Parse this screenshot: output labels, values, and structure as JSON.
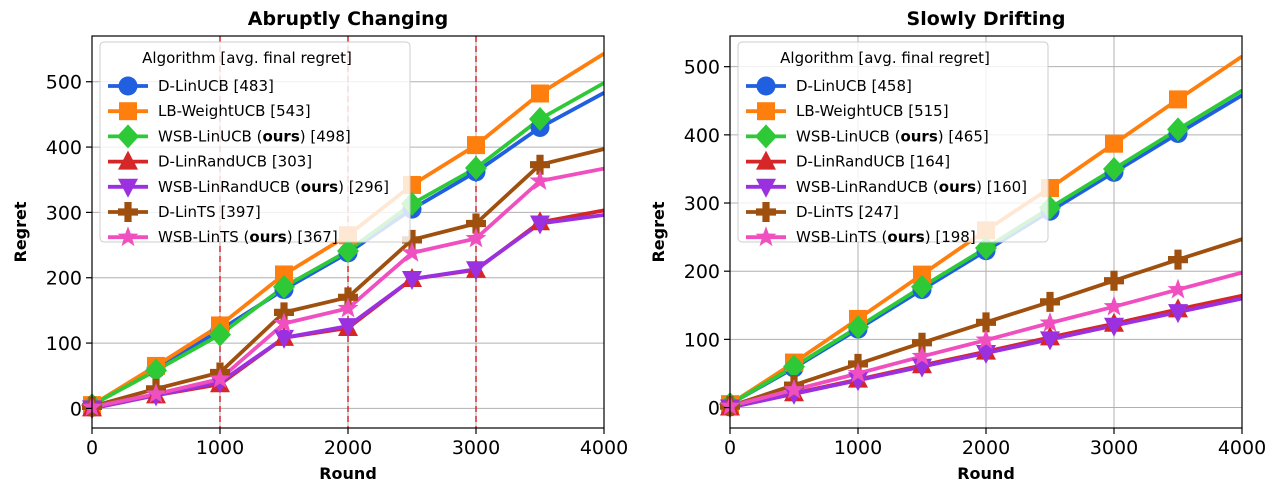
{
  "chart_data": [
    {
      "type": "line",
      "title": "Abruptly Changing",
      "xlabel": "Round",
      "ylabel": "Regret",
      "xlim": [
        0,
        4000
      ],
      "ylim": [
        -30,
        570
      ],
      "xticks": [
        0,
        1000,
        2000,
        3000,
        4000
      ],
      "yticks": [
        0,
        100,
        200,
        300,
        400,
        500
      ],
      "grid": true,
      "change_points": [
        1000,
        2000,
        3000
      ],
      "legend": {
        "title": "Algorithm [avg. final regret]",
        "placement": "top-left"
      },
      "series": [
        {
          "name": "D-LinUCB",
          "legend_pre": "D-LinUCB ",
          "legend_bold": "",
          "legend_post": "[483]",
          "color": "#1f5fe0",
          "marker": "circle",
          "x": [
            0,
            500,
            1000,
            1500,
            2000,
            2500,
            3000,
            3500,
            4000
          ],
          "y": [
            5,
            60,
            120,
            182,
            238,
            305,
            362,
            430,
            483
          ]
        },
        {
          "name": "LB-WeightUCB",
          "legend_pre": "LB-WeightUCB ",
          "legend_bold": "",
          "legend_post": "[543]",
          "color": "#ff7f0e",
          "marker": "square",
          "x": [
            0,
            500,
            1000,
            1500,
            2000,
            2500,
            3000,
            3500,
            4000
          ],
          "y": [
            5,
            65,
            127,
            205,
            265,
            342,
            403,
            482,
            543
          ]
        },
        {
          "name": "WSB-LinUCB (ours)",
          "legend_pre": "WSB-LinUCB (",
          "legend_bold": "ours",
          "legend_post": ") [498]",
          "color": "#2dc937",
          "marker": "diamond",
          "x": [
            0,
            500,
            1000,
            1500,
            2000,
            2500,
            3000,
            3500,
            4000
          ],
          "y": [
            5,
            58,
            113,
            186,
            241,
            313,
            368,
            443,
            498
          ]
        },
        {
          "name": "D-LinRandUCB",
          "legend_pre": "D-LinRandUCB ",
          "legend_bold": "",
          "legend_post": "[303]",
          "color": "#d62728",
          "marker": "triangle-up",
          "x": [
            0,
            500,
            1000,
            1500,
            2000,
            2500,
            3000,
            3500,
            4000
          ],
          "y": [
            0,
            20,
            37,
            108,
            123,
            198,
            212,
            285,
            303
          ]
        },
        {
          "name": "WSB-LinRandUCB (ours)",
          "legend_pre": "WSB-LinRandUCB (",
          "legend_bold": "ours",
          "legend_post": ") [296]",
          "color": "#9b30e0",
          "marker": "triangle-down",
          "x": [
            0,
            500,
            1000,
            1500,
            2000,
            2500,
            3000,
            3500,
            4000
          ],
          "y": [
            0,
            20,
            40,
            108,
            126,
            198,
            213,
            283,
            296
          ]
        },
        {
          "name": "D-LinTS",
          "legend_pre": "D-LinTS ",
          "legend_bold": "",
          "legend_post": "[397]",
          "color": "#a0500e",
          "marker": "plus",
          "x": [
            0,
            500,
            1000,
            1500,
            2000,
            2500,
            3000,
            3500,
            4000
          ],
          "y": [
            3,
            30,
            55,
            147,
            170,
            258,
            283,
            373,
            397
          ]
        },
        {
          "name": "WSB-LinTS (ours)",
          "legend_pre": "WSB-LinTS (",
          "legend_bold": "ours",
          "legend_post": ") [367]",
          "color": "#f04fc0",
          "marker": "star",
          "x": [
            0,
            500,
            1000,
            1500,
            2000,
            2500,
            3000,
            3500,
            4000
          ],
          "y": [
            2,
            22,
            45,
            130,
            153,
            238,
            260,
            348,
            367
          ]
        }
      ]
    },
    {
      "type": "line",
      "title": "Slowly Drifting",
      "xlabel": "Round",
      "ylabel": "Regret",
      "xlim": [
        0,
        4000
      ],
      "ylim": [
        -30,
        545
      ],
      "xticks": [
        0,
        1000,
        2000,
        3000,
        4000
      ],
      "yticks": [
        0,
        100,
        200,
        300,
        400,
        500
      ],
      "grid": true,
      "change_points": [],
      "legend": {
        "title": "Algorithm [avg. final regret]",
        "placement": "top-left"
      },
      "series": [
        {
          "name": "D-LinUCB",
          "legend_pre": "D-LinUCB ",
          "legend_bold": "",
          "legend_post": "[458]",
          "color": "#1f5fe0",
          "marker": "circle",
          "x": [
            0,
            500,
            1000,
            1500,
            2000,
            2500,
            3000,
            3500,
            4000
          ],
          "y": [
            5,
            58,
            115,
            173,
            230,
            288,
            345,
            402,
            458
          ]
        },
        {
          "name": "LB-WeightUCB",
          "legend_pre": "LB-WeightUCB ",
          "legend_bold": "",
          "legend_post": "[515]",
          "color": "#ff7f0e",
          "marker": "square",
          "x": [
            0,
            500,
            1000,
            1500,
            2000,
            2500,
            3000,
            3500,
            4000
          ],
          "y": [
            5,
            66,
            130,
            195,
            260,
            322,
            387,
            452,
            515
          ]
        },
        {
          "name": "WSB-LinUCB (ours)",
          "legend_pre": "WSB-LinUCB (",
          "legend_bold": "ours",
          "legend_post": ") [465]",
          "color": "#2dc937",
          "marker": "diamond",
          "x": [
            0,
            500,
            1000,
            1500,
            2000,
            2500,
            3000,
            3500,
            4000
          ],
          "y": [
            5,
            60,
            118,
            177,
            234,
            293,
            350,
            408,
            465
          ]
        },
        {
          "name": "D-LinRandUCB",
          "legend_pre": "D-LinRandUCB ",
          "legend_bold": "",
          "legend_post": "[164]",
          "color": "#d62728",
          "marker": "triangle-up",
          "x": [
            0,
            500,
            1000,
            1500,
            2000,
            2500,
            3000,
            3500,
            4000
          ],
          "y": [
            0,
            21,
            41,
            62,
            82,
            103,
            123,
            144,
            164
          ]
        },
        {
          "name": "WSB-LinRandUCB (ours)",
          "legend_pre": "WSB-LinRandUCB (",
          "legend_bold": "ours",
          "legend_post": ") [160]",
          "color": "#9b30e0",
          "marker": "triangle-down",
          "x": [
            0,
            500,
            1000,
            1500,
            2000,
            2500,
            3000,
            3500,
            4000
          ],
          "y": [
            0,
            20,
            40,
            60,
            80,
            100,
            120,
            140,
            160
          ]
        },
        {
          "name": "D-LinTS",
          "legend_pre": "D-LinTS ",
          "legend_bold": "",
          "legend_post": "[247]",
          "color": "#a0500e",
          "marker": "plus",
          "x": [
            0,
            500,
            1000,
            1500,
            2000,
            2500,
            3000,
            3500,
            4000
          ],
          "y": [
            2,
            33,
            64,
            95,
            125,
            155,
            186,
            217,
            247
          ]
        },
        {
          "name": "WSB-LinTS (ours)",
          "legend_pre": "WSB-LinTS (",
          "legend_bold": "ours",
          "legend_post": ") [198]",
          "color": "#f04fc0",
          "marker": "star",
          "x": [
            0,
            500,
            1000,
            1500,
            2000,
            2500,
            3000,
            3500,
            4000
          ],
          "y": [
            2,
            26,
            50,
            75,
            99,
            124,
            148,
            173,
            198
          ]
        }
      ]
    }
  ]
}
